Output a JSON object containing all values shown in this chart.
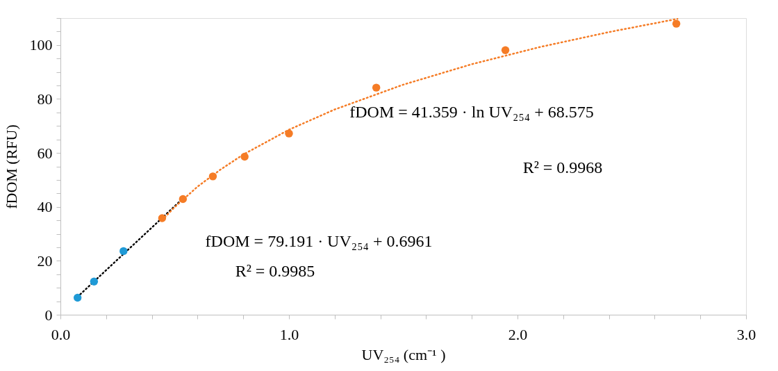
{
  "chart_data": {
    "type": "scatter",
    "xlabel": "UV₂₅₄ (cm⁻¹ )",
    "ylabel": "fDOM (RFU)",
    "xlim": [
      0,
      3.0
    ],
    "ylim": [
      0,
      110
    ],
    "xticks": [
      {
        "value": 0,
        "label": "0.0"
      },
      {
        "value": 0.2,
        "label": null
      },
      {
        "value": 0.4,
        "label": null
      },
      {
        "value": 0.6,
        "label": null
      },
      {
        "value": 0.8,
        "label": null
      },
      {
        "value": 1.0,
        "label": "1.0"
      },
      {
        "value": 1.2,
        "label": null
      },
      {
        "value": 1.4,
        "label": null
      },
      {
        "value": 1.6,
        "label": null
      },
      {
        "value": 1.8,
        "label": null
      },
      {
        "value": 2.0,
        "label": "2.0"
      },
      {
        "value": 2.2,
        "label": null
      },
      {
        "value": 2.4,
        "label": null
      },
      {
        "value": 2.6,
        "label": null
      },
      {
        "value": 2.8,
        "label": null
      },
      {
        "value": 3.0,
        "label": "3.0"
      }
    ],
    "yticks": [
      0,
      {
        "value": 5,
        "label": null
      },
      {
        "value": 10,
        "label": null
      },
      {
        "value": 15,
        "label": null
      },
      20,
      {
        "value": 25,
        "label": null
      },
      {
        "value": 30,
        "label": null
      },
      {
        "value": 35,
        "label": null
      },
      40,
      {
        "value": 45,
        "label": null
      },
      {
        "value": 50,
        "label": null
      },
      {
        "value": 55,
        "label": null
      },
      60,
      {
        "value": 65,
        "label": null
      },
      {
        "value": 70,
        "label": null
      },
      {
        "value": 75,
        "label": null
      },
      80,
      {
        "value": 85,
        "label": null
      },
      {
        "value": 90,
        "label": null
      },
      {
        "value": 95,
        "label": null
      },
      100,
      {
        "value": 105,
        "label": null
      },
      {
        "value": 110,
        "label": null
      }
    ],
    "grid": false,
    "series": [
      {
        "type": "line",
        "color": "#000000",
        "line_style": "dotted",
        "marker": "none",
        "x": [
          0.0745,
          0.536
        ],
        "values": [
          6.6,
          43.1
        ]
      },
      {
        "type": "line",
        "color": "#f57c26",
        "line_style": "dotted",
        "marker": "none",
        "x": [
          0.445,
          0.5,
          0.6,
          0.7,
          0.8,
          1.0,
          1.2,
          1.5,
          1.8,
          2.1,
          2.4,
          2.7
        ],
        "values": [
          35.1,
          39.9,
          47.5,
          53.8,
          59.4,
          68.6,
          76.1,
          85.3,
          92.9,
          99.3,
          104.8,
          109.7
        ]
      },
      {
        "color": "#1f9ad6",
        "marker": "circle",
        "x": [
          0.075,
          0.147,
          0.276
        ],
        "values": [
          6.3,
          12.3,
          23.6
        ]
      },
      {
        "color": "#f57c26",
        "marker": "circle",
        "x": [
          0.445,
          0.536,
          0.667,
          0.806,
          1.0,
          1.382,
          1.947,
          2.695
        ],
        "values": [
          35.8,
          42.9,
          51.3,
          58.6,
          67.2,
          84.2,
          98.1,
          107.9
        ]
      }
    ],
    "annotations": [
      "fDOM = 79.191 · UV₂₅₄ + 0.6961",
      "R² = 0.9985",
      "fDOM = 41.359 · ln UV₂₅₄ + 68.575",
      "R² = 0.9968"
    ]
  }
}
